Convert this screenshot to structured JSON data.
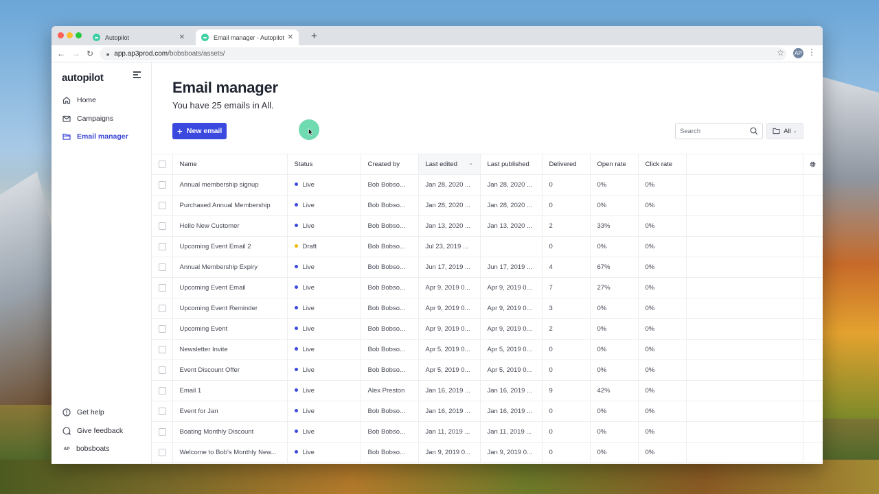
{
  "browser": {
    "tabs": [
      {
        "title": "Autopilot",
        "active": false
      },
      {
        "title": "Email manager - Autopilot",
        "active": true
      }
    ],
    "url_host": "app.ap3prod.com",
    "url_path": "/bobsboats/assets/",
    "extension_badge": "AP"
  },
  "sidebar": {
    "logo": "autopilot",
    "items": [
      {
        "label": "Home",
        "icon": "home-icon",
        "active": false
      },
      {
        "label": "Campaigns",
        "icon": "mail-icon",
        "active": false
      },
      {
        "label": "Email manager",
        "icon": "folder-icon",
        "active": true
      }
    ],
    "bottom_items": [
      {
        "label": "Get help",
        "icon": "help-icon"
      },
      {
        "label": "Give feedback",
        "icon": "feedback-icon"
      },
      {
        "label": "bobsboats",
        "avatar": "AP"
      }
    ]
  },
  "header": {
    "title": "Email manager",
    "subtitle": "You have 25 emails in All."
  },
  "toolbar": {
    "new_email_label": "New email",
    "search_placeholder": "Search",
    "filter_label": "All"
  },
  "colors": {
    "accent": "#3b49df",
    "live": "#3b49df",
    "draft": "#f2b705"
  },
  "table": {
    "columns": [
      "Name",
      "Status",
      "Created by",
      "Last edited",
      "Last published",
      "Delivered",
      "Open rate",
      "Click rate"
    ],
    "sorted_column": "Last edited",
    "rows": [
      {
        "name": "Annual membership signup",
        "status": "Live",
        "created_by": "Bob Bobso...",
        "last_edited": "Jan 28, 2020 ...",
        "last_published": "Jan 28, 2020 ...",
        "delivered": "0",
        "open_rate": "0%",
        "click_rate": "0%"
      },
      {
        "name": "Purchased Annual Membership",
        "status": "Live",
        "created_by": "Bob Bobso...",
        "last_edited": "Jan 28, 2020 ...",
        "last_published": "Jan 28, 2020 ...",
        "delivered": "0",
        "open_rate": "0%",
        "click_rate": "0%"
      },
      {
        "name": "Hello New Customer",
        "status": "Live",
        "created_by": "Bob Bobso...",
        "last_edited": "Jan 13, 2020 ...",
        "last_published": "Jan 13, 2020 ...",
        "delivered": "2",
        "open_rate": "33%",
        "click_rate": "0%"
      },
      {
        "name": "Upcoming Event Email 2",
        "status": "Draft",
        "created_by": "Bob Bobso...",
        "last_edited": "Jul 23, 2019 ...",
        "last_published": "",
        "delivered": "0",
        "open_rate": "0%",
        "click_rate": "0%"
      },
      {
        "name": "Annual Membership Expiry",
        "status": "Live",
        "created_by": "Bob Bobso...",
        "last_edited": "Jun 17, 2019 ...",
        "last_published": "Jun 17, 2019 ...",
        "delivered": "4",
        "open_rate": "67%",
        "click_rate": "0%"
      },
      {
        "name": "Upcoming Event Email",
        "status": "Live",
        "created_by": "Bob Bobso...",
        "last_edited": "Apr 9, 2019 0...",
        "last_published": "Apr 9, 2019 0...",
        "delivered": "7",
        "open_rate": "27%",
        "click_rate": "0%"
      },
      {
        "name": "Upcoming Event Reminder",
        "status": "Live",
        "created_by": "Bob Bobso...",
        "last_edited": "Apr 9, 2019 0...",
        "last_published": "Apr 9, 2019 0...",
        "delivered": "3",
        "open_rate": "0%",
        "click_rate": "0%"
      },
      {
        "name": "Upcoming Event",
        "status": "Live",
        "created_by": "Bob Bobso...",
        "last_edited": "Apr 9, 2019 0...",
        "last_published": "Apr 9, 2019 0...",
        "delivered": "2",
        "open_rate": "0%",
        "click_rate": "0%"
      },
      {
        "name": "Newsletter Invite",
        "status": "Live",
        "created_by": "Bob Bobso...",
        "last_edited": "Apr 5, 2019 0...",
        "last_published": "Apr 5, 2019 0...",
        "delivered": "0",
        "open_rate": "0%",
        "click_rate": "0%"
      },
      {
        "name": "Event Discount Offer",
        "status": "Live",
        "created_by": "Bob Bobso...",
        "last_edited": "Apr 5, 2019 0...",
        "last_published": "Apr 5, 2019 0...",
        "delivered": "0",
        "open_rate": "0%",
        "click_rate": "0%"
      },
      {
        "name": "Email 1",
        "status": "Live",
        "created_by": "Alex Preston",
        "last_edited": "Jan 16, 2019 ...",
        "last_published": "Jan 16, 2019 ...",
        "delivered": "9",
        "open_rate": "42%",
        "click_rate": "0%"
      },
      {
        "name": "Event for Jan",
        "status": "Live",
        "created_by": "Bob Bobso...",
        "last_edited": "Jan 16, 2019 ...",
        "last_published": "Jan 16, 2019 ...",
        "delivered": "0",
        "open_rate": "0%",
        "click_rate": "0%"
      },
      {
        "name": "Boating Monthly Discount",
        "status": "Live",
        "created_by": "Bob Bobso...",
        "last_edited": "Jan 11, 2019 ...",
        "last_published": "Jan 11, 2019 ...",
        "delivered": "0",
        "open_rate": "0%",
        "click_rate": "0%"
      },
      {
        "name": "Welcome to Bob's Monthly New...",
        "status": "Live",
        "created_by": "Bob Bobso...",
        "last_edited": "Jan 9, 2019 0...",
        "last_published": "Jan 9, 2019 0...",
        "delivered": "0",
        "open_rate": "0%",
        "click_rate": "0%"
      }
    ]
  }
}
